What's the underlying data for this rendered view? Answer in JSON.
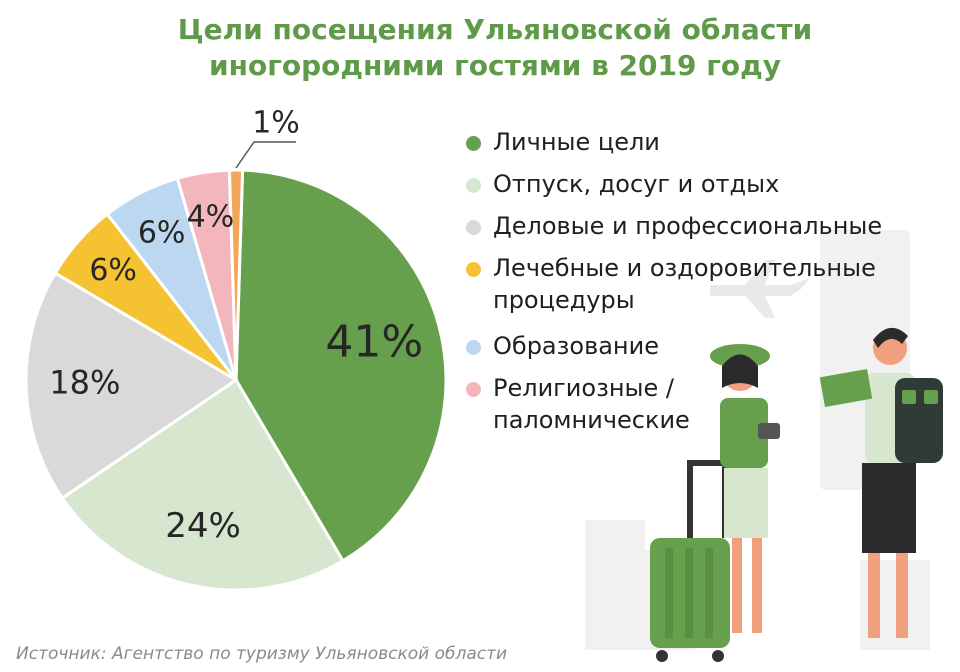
{
  "title": {
    "line1": "Цели посещения Ульяновской области",
    "line2": "иногородними гостями в 2019 году"
  },
  "legend": [
    {
      "label": "Личные цели",
      "color": "#66a04d"
    },
    {
      "label": "Отпуск, досуг и отдых",
      "color": "#d6e6cf"
    },
    {
      "label": "Деловые и профессиональные",
      "color": "#d9d9d9"
    },
    {
      "label": "Лечебные и оздоровительные процедуры",
      "color": "#f5c231"
    },
    {
      "label": "Образование",
      "color": "#bcd8f1"
    },
    {
      "label": "Религиозные / паломнические",
      "color": "#f3b6bd"
    }
  ],
  "chart_data": {
    "type": "pie",
    "title": "Цели посещения Ульяновской области иногородними гостями в 2019 году",
    "categories": [
      "Личные цели",
      "Отпуск, досуг и отдых",
      "Деловые и профессиональные",
      "Лечебные и оздоровительные процедуры",
      "Образование",
      "Религиозные / паломнические",
      ""
    ],
    "values": [
      41,
      24,
      18,
      6,
      6,
      4,
      1
    ],
    "labels": [
      "41%",
      "24%",
      "18%",
      "6%",
      "6%",
      "4%",
      "1%"
    ],
    "colors": [
      "#66a04d",
      "#d6e6cf",
      "#d9d9d9",
      "#f5c231",
      "#bcd8f1",
      "#f3b6bd",
      "#f2a65a"
    ],
    "legend_position": "right"
  },
  "source": "Источник: Агентство по туризму Ульяновской области"
}
